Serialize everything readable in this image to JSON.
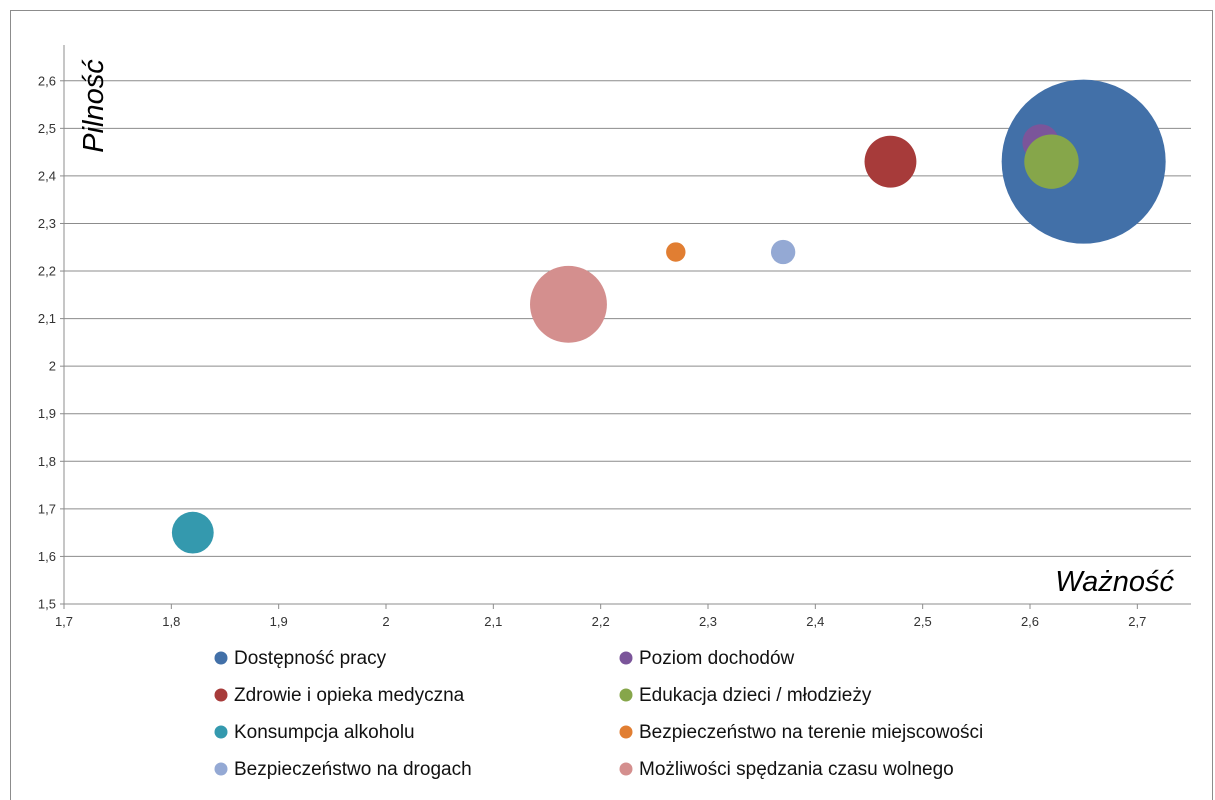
{
  "chart_data": {
    "type": "bubble",
    "xlabel": "Ważność",
    "ylabel": "Pilność",
    "xlim": [
      1.7,
      2.75
    ],
    "ylim": [
      1.5,
      2.65
    ],
    "x_ticks": [
      "1,7",
      "1,8",
      "1,9",
      "2",
      "2,1",
      "2,2",
      "2,3",
      "2,4",
      "2,5",
      "2,6",
      "2,7"
    ],
    "y_ticks": [
      "1,5",
      "1,6",
      "1,7",
      "1,8",
      "1,9",
      "2",
      "2,1",
      "2,2",
      "2,3",
      "2,4",
      "2,5",
      "2,6"
    ],
    "grid": "horizontal",
    "legend_position": "bottom",
    "series": [
      {
        "name": "Dostępność pracy",
        "x": 2.65,
        "y": 2.43,
        "size": 100,
        "color": "#4270A8"
      },
      {
        "name": "Poziom dochodów",
        "x": 2.61,
        "y": 2.47,
        "size": 5,
        "color": "#7B559A"
      },
      {
        "name": "Zdrowie i opieka medyczna",
        "x": 2.47,
        "y": 2.43,
        "size": 10,
        "color": "#A73B3A"
      },
      {
        "name": "Edukacja dzieci / młodzieży",
        "x": 2.62,
        "y": 2.43,
        "size": 11,
        "color": "#86A64A"
      },
      {
        "name": "Konsumpcja alkoholu",
        "x": 1.82,
        "y": 1.65,
        "size": 6.5,
        "color": "#3499AE"
      },
      {
        "name": "Bezpieczeństwo na terenie miejscowości",
        "x": 2.27,
        "y": 2.24,
        "size": 1.4,
        "color": "#E17E32"
      },
      {
        "name": "Bezpieczeństwo na drogach",
        "x": 2.37,
        "y": 2.24,
        "size": 2.2,
        "color": "#94A9D4"
      },
      {
        "name": "Możliwości spędzania czasu wolnego",
        "x": 2.17,
        "y": 2.13,
        "size": 22,
        "color": "#D48F8E"
      }
    ]
  }
}
